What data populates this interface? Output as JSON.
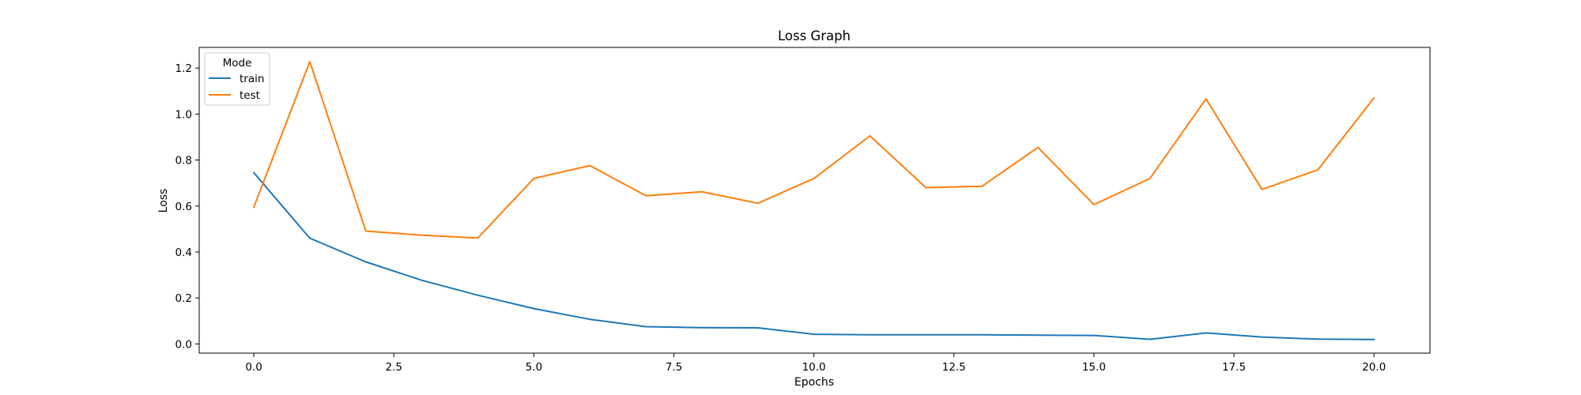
{
  "chart_data": {
    "type": "line",
    "title": "Loss Graph",
    "xlabel": "Epochs",
    "ylabel": "Loss",
    "xlim": [
      -0.975,
      21.0
    ],
    "ylim": [
      -0.04,
      1.29
    ],
    "x_ticks": [
      0.0,
      2.5,
      5.0,
      7.5,
      10.0,
      12.5,
      15.0,
      17.5,
      20.0
    ],
    "x_tick_labels": [
      "0.0",
      "2.5",
      "5.0",
      "7.5",
      "10.0",
      "12.5",
      "15.0",
      "17.5",
      "20.0"
    ],
    "y_ticks": [
      0.0,
      0.2,
      0.4,
      0.6,
      0.8,
      1.0,
      1.2
    ],
    "y_tick_labels": [
      "0.0",
      "0.2",
      "0.4",
      "0.6",
      "0.8",
      "1.0",
      "1.2"
    ],
    "grid": false,
    "legend": {
      "title": "Mode",
      "placement": "top-left"
    },
    "x": [
      0,
      1,
      2,
      3,
      4,
      5,
      6,
      7,
      8,
      9,
      10,
      11,
      12,
      13,
      14,
      15,
      16,
      17,
      18,
      19,
      20
    ],
    "series": [
      {
        "name": "train",
        "color": "#1f77b4",
        "values": [
          0.745,
          0.46,
          0.357,
          0.277,
          0.212,
          0.154,
          0.107,
          0.075,
          0.071,
          0.07,
          0.042,
          0.04,
          0.04,
          0.04,
          0.038,
          0.037,
          0.02,
          0.048,
          0.03,
          0.021,
          0.019
        ]
      },
      {
        "name": "test",
        "color": "#ff7f0e",
        "values": [
          0.595,
          1.228,
          0.491,
          0.473,
          0.461,
          0.72,
          0.776,
          0.645,
          0.662,
          0.612,
          0.72,
          0.905,
          0.68,
          0.686,
          0.855,
          0.606,
          0.72,
          1.066,
          0.672,
          0.758,
          1.07
        ]
      }
    ]
  }
}
